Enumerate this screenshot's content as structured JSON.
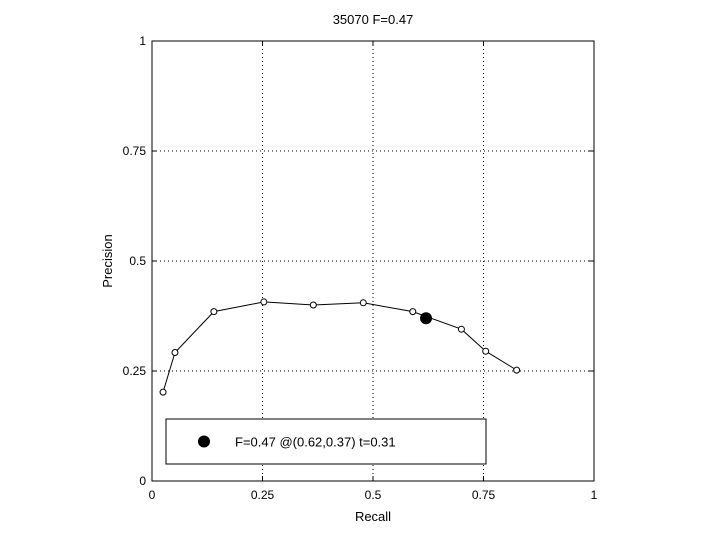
{
  "chart_data": {
    "type": "line",
    "title": "35070 F=0.47",
    "xlabel": "Recall",
    "ylabel": "Precision",
    "xlim": [
      0,
      1
    ],
    "ylim": [
      0,
      1
    ],
    "xticks": [
      0,
      0.25,
      0.5,
      0.75,
      1
    ],
    "yticks": [
      0,
      0.25,
      0.5,
      0.75,
      1
    ],
    "xtick_labels": [
      "0",
      "0.25",
      "0.5",
      "0.75",
      "1"
    ],
    "ytick_labels": [
      "0",
      "0.25",
      "0.5",
      "0.75",
      "1"
    ],
    "grid": true,
    "series": [
      {
        "marker": "open-circle",
        "color": "#000000",
        "x": [
          0.025,
          0.052,
          0.14,
          0.253,
          0.365,
          0.478,
          0.59,
          0.7,
          0.755,
          0.825
        ],
        "y": [
          0.202,
          0.292,
          0.385,
          0.407,
          0.4,
          0.405,
          0.385,
          0.345,
          0.295,
          0.252
        ]
      }
    ],
    "highlight": {
      "x": 0.62,
      "y": 0.37,
      "marker": "filled-circle"
    },
    "legend": {
      "position": "bottom-left",
      "text": "F=0.47 @(0.62,0.37) t=0.31"
    }
  }
}
